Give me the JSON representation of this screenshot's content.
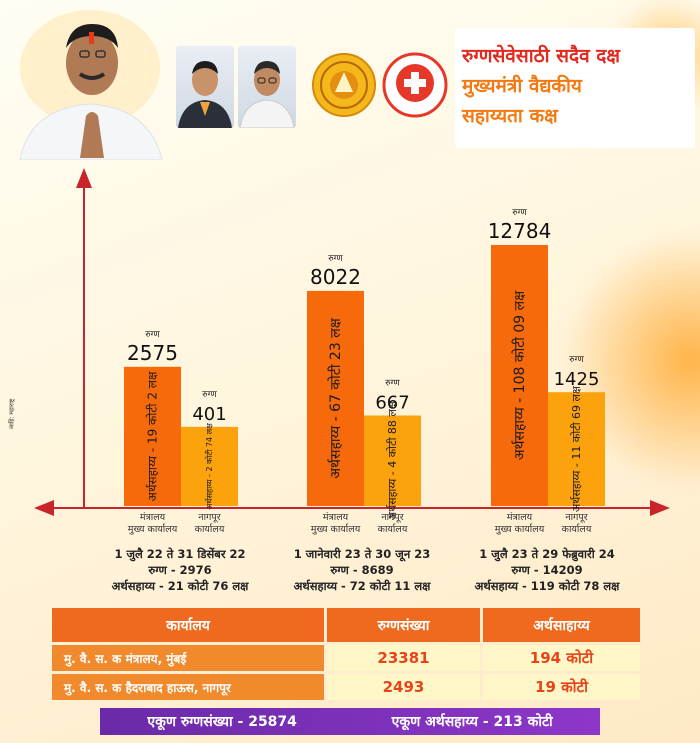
{
  "title_lines": [
    "रुग्णसेवेसाठी सदैव दक्ष",
    "मुख्यमंत्री वैद्यकीय",
    "सहाय्यता कक्ष"
  ],
  "colors": {
    "main_bar": "#f76a0c",
    "nagpur_bar": "#fba20c",
    "title_red": "#e22b20",
    "title_orange": "#f37a12",
    "axis": "#c8242a",
    "header_orange": "#ef6a1e",
    "total_purple": "#7a2fb8"
  },
  "emblem_text": "मुख्यमंत्री वैद्यकीय सहाय्यता कक्ष",
  "side_note": "जाहि: महाराष्ट्र",
  "chart_data": {
    "type": "bar",
    "groups": [
      {
        "period": [
          "1 जुलै 22 ते 31 डिसेंबर 22",
          "रुग्ण - 2976",
          "अर्थसहाय्य - 21 कोटी 76 लक्ष"
        ],
        "bars": [
          {
            "patients_label": "रुग्ण",
            "patients": 2575,
            "aid_label": "अर्थसहाय्य - 19 कोटी 2 लक्ष",
            "office": [
              "मंत्रालय",
              "मुख्य कार्यालय"
            ]
          },
          {
            "patients_label": "रुग्ण",
            "patients": 401,
            "aid_label": "अर्थसहाय्य - 2 कोटी 74 लक्ष",
            "office": [
              "नागपूर",
              "कार्यालय"
            ]
          }
        ]
      },
      {
        "period": [
          "1 जानेवारी 23 ते 30 जून 23",
          "रुग्ण - 8689",
          "अर्थसहाय्य - 72 कोटी 11 लक्ष"
        ],
        "bars": [
          {
            "patients_label": "रुग्ण",
            "patients": 8022,
            "aid_label": "अर्थसहाय्य - 67 कोटी 23 लक्ष",
            "office": [
              "मंत्रालय",
              "मुख्य कार्यालय"
            ]
          },
          {
            "patients_label": "रुग्ण",
            "patients": 667,
            "aid_label": "अर्थसहाय्य - 4 कोटी 88 लक्ष",
            "office": [
              "नागपूर",
              "कार्यालय"
            ]
          }
        ]
      },
      {
        "period": [
          "1 जुलै 23 ते 29 फेब्रुवारी 24",
          "रुग्ण - 14209",
          "अर्थसहाय्य - 119 कोटी 78 लक्ष"
        ],
        "bars": [
          {
            "patients_label": "रुग्ण",
            "patients": 12784,
            "aid_label": "अर्थसहाय्य - 108 कोटी 09 लक्ष",
            "office": [
              "मंत्रालय",
              "मुख्य कार्यालय"
            ]
          },
          {
            "patients_label": "रुग्ण",
            "patients": 1425,
            "aid_label": "अर्थसहाय्य - 11 कोटी 69 लक्ष",
            "office": [
              "नागपूर",
              "कार्यालय"
            ]
          }
        ]
      }
    ]
  },
  "table": {
    "headers": [
      "कार्यालय",
      "रुग्णसंख्या",
      "अर्थसाहाय्य"
    ],
    "rows": [
      [
        "मु. वै. स. क मंत्रालय, मुंबई",
        "23381",
        "194 कोटी"
      ],
      [
        "मु. वै. स. क हैदराबाद हाऊस, नागपूर",
        "2493",
        "19 कोटी"
      ]
    ]
  },
  "totals": {
    "patients": "एकूण रुग्णसंख्या -  25874",
    "aid": "एकूण अर्थसहाय्य -  213 कोटी"
  }
}
